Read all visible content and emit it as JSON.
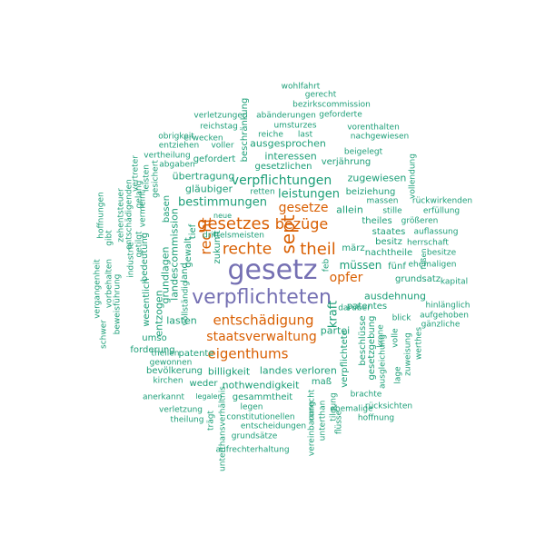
{
  "colors": {
    "purple": "#7570b3",
    "orange": "#d95f02",
    "green": "#1b9e77"
  },
  "words": [
    {
      "t": "gesetz",
      "c": "purple"
    },
    {
      "t": "verpflichteten",
      "c": "purple"
    },
    {
      "t": "sept",
      "c": "orange"
    },
    {
      "t": "theil",
      "c": "orange"
    },
    {
      "t": "rechte",
      "c": "orange"
    },
    {
      "t": "gesetzes",
      "c": "orange"
    },
    {
      "t": "bezüge",
      "c": "orange"
    },
    {
      "t": "gesetze",
      "c": "orange"
    },
    {
      "t": "recht",
      "c": "orange"
    },
    {
      "t": "entschädigung",
      "c": "orange"
    },
    {
      "t": "staatsverwaltung",
      "c": "orange"
    },
    {
      "t": "eigenthums",
      "c": "orange"
    },
    {
      "t": "opfer",
      "c": "orange"
    },
    {
      "t": "kraft",
      "c": "green"
    },
    {
      "t": "verpflichtungen",
      "c": "green"
    },
    {
      "t": "bestimmungen",
      "c": "green"
    },
    {
      "t": "leistungen",
      "c": "green"
    },
    {
      "t": "müssen",
      "c": "green"
    },
    {
      "t": "ausdehnung",
      "c": "green"
    },
    {
      "t": "lasten",
      "c": "green"
    },
    {
      "t": "partei",
      "c": "green"
    },
    {
      "t": "billigkeit",
      "c": "green"
    },
    {
      "t": "landes",
      "c": "green"
    },
    {
      "t": "verloren",
      "c": "green"
    },
    {
      "t": "nothwendigkeit",
      "c": "green"
    },
    {
      "t": "maß",
      "c": "green"
    },
    {
      "t": "verpflichtete",
      "c": "green"
    },
    {
      "t": "landescommission",
      "c": "green"
    },
    {
      "t": "grundlagen",
      "c": "green"
    },
    {
      "t": "entzogen",
      "c": "green"
    },
    {
      "t": "land",
      "c": "green"
    },
    {
      "t": "gewalt",
      "c": "green"
    },
    {
      "t": "tief",
      "c": "green"
    },
    {
      "t": "zukunft",
      "c": "green"
    },
    {
      "t": "basen",
      "c": "green"
    },
    {
      "t": "gläubiger",
      "c": "green"
    },
    {
      "t": "übertragung",
      "c": "green"
    },
    {
      "t": "gefordert",
      "c": "green"
    },
    {
      "t": "interessen",
      "c": "green"
    },
    {
      "t": "ausgesprochen",
      "c": "green"
    },
    {
      "t": "gesetzlichen",
      "c": "green"
    },
    {
      "t": "verjährung",
      "c": "green"
    },
    {
      "t": "zugewiesen",
      "c": "green"
    },
    {
      "t": "allein",
      "c": "green"
    },
    {
      "t": "theiles",
      "c": "green"
    },
    {
      "t": "staates",
      "c": "green"
    },
    {
      "t": "besitz",
      "c": "green"
    },
    {
      "t": "märz",
      "c": "green"
    },
    {
      "t": "fünf",
      "c": "green"
    },
    {
      "t": "grundsatz",
      "c": "green"
    },
    {
      "t": "beiziehung",
      "c": "green"
    },
    {
      "t": "nachtheile",
      "c": "green"
    },
    {
      "t": "patentes",
      "c": "green"
    },
    {
      "t": "beschlüsse",
      "c": "green"
    },
    {
      "t": "gesetzgebung",
      "c": "green"
    },
    {
      "t": "patente",
      "c": "green"
    },
    {
      "t": "gesammtheit",
      "c": "green"
    },
    {
      "t": "weder",
      "c": "green"
    },
    {
      "t": "umso",
      "c": "green"
    },
    {
      "t": "forderung",
      "c": "green"
    },
    {
      "t": "bevölkerung",
      "c": "green"
    },
    {
      "t": "wesentlich",
      "c": "green"
    },
    {
      "t": "bedeutung",
      "c": "green"
    },
    {
      "t": "beschränkung",
      "c": "green"
    },
    {
      "t": "umsturzes",
      "c": "green"
    },
    {
      "t": "reiche",
      "c": "green"
    },
    {
      "t": "last",
      "c": "green"
    },
    {
      "t": "voller",
      "c": "green"
    },
    {
      "t": "reichstag",
      "c": "green"
    },
    {
      "t": "verletzungen",
      "c": "green"
    },
    {
      "t": "abänderungen",
      "c": "green"
    },
    {
      "t": "geforderte",
      "c": "green"
    },
    {
      "t": "bezirkscommission",
      "c": "green"
    },
    {
      "t": "gerecht",
      "c": "green"
    },
    {
      "t": "wohlfahrt",
      "c": "green"
    },
    {
      "t": "vorenthalten",
      "c": "green"
    },
    {
      "t": "nachgewiesen",
      "c": "green"
    },
    {
      "t": "beigelegt",
      "c": "green"
    },
    {
      "t": "obrigkeit",
      "c": "green"
    },
    {
      "t": "erwecken",
      "c": "green"
    },
    {
      "t": "entziehen",
      "c": "green"
    },
    {
      "t": "vertheilung",
      "c": "green"
    },
    {
      "t": "abgaben",
      "c": "green"
    },
    {
      "t": "retten",
      "c": "green"
    },
    {
      "t": "neue",
      "c": "green"
    },
    {
      "t": "drittelsmeisten",
      "c": "green"
    },
    {
      "t": "massen",
      "c": "green"
    },
    {
      "t": "stille",
      "c": "green"
    },
    {
      "t": "größeren",
      "c": "green"
    },
    {
      "t": "rückwirkenden",
      "c": "green"
    },
    {
      "t": "erfüllung",
      "c": "green"
    },
    {
      "t": "vollendung",
      "c": "green"
    },
    {
      "t": "auflassung",
      "c": "green"
    },
    {
      "t": "herrschaft",
      "c": "green"
    },
    {
      "t": "besitze",
      "c": "green"
    },
    {
      "t": "ehemaligen",
      "c": "green"
    },
    {
      "t": "fußen",
      "c": "green"
    },
    {
      "t": "kapital",
      "c": "green"
    },
    {
      "t": "hinlänglich",
      "c": "green"
    },
    {
      "t": "aufgehoben",
      "c": "green"
    },
    {
      "t": "gänzliche",
      "c": "green"
    },
    {
      "t": "darüber",
      "c": "green"
    },
    {
      "t": "blick",
      "c": "green"
    },
    {
      "t": "krone",
      "c": "green"
    },
    {
      "t": "volle",
      "c": "green"
    },
    {
      "t": "werthes",
      "c": "green"
    },
    {
      "t": "zuweisung",
      "c": "green"
    },
    {
      "t": "ausgleichung",
      "c": "green"
    },
    {
      "t": "lage",
      "c": "green"
    },
    {
      "t": "brachte",
      "c": "green"
    },
    {
      "t": "rücksichten",
      "c": "green"
    },
    {
      "t": "hoffnung",
      "c": "green"
    },
    {
      "t": "ehemalige",
      "c": "green"
    },
    {
      "t": "flüsse",
      "c": "green"
    },
    {
      "t": "tilgung",
      "c": "green"
    },
    {
      "t": "unterthan",
      "c": "green"
    },
    {
      "t": "vereinbarung",
      "c": "green"
    },
    {
      "t": "unrecht",
      "c": "green"
    },
    {
      "t": "legen",
      "c": "green"
    },
    {
      "t": "constitutionellen",
      "c": "green"
    },
    {
      "t": "entscheidungen",
      "c": "green"
    },
    {
      "t": "grundsätze",
      "c": "green"
    },
    {
      "t": "aufrechterhaltung",
      "c": "green"
    },
    {
      "t": "unterthansverhältnis",
      "c": "green"
    },
    {
      "t": "trägt",
      "c": "green"
    },
    {
      "t": "verletzung",
      "c": "green"
    },
    {
      "t": "theilung",
      "c": "green"
    },
    {
      "t": "anerkannt",
      "c": "green"
    },
    {
      "t": "legalen",
      "c": "green"
    },
    {
      "t": "kirchen",
      "c": "green"
    },
    {
      "t": "gewonnen",
      "c": "green"
    },
    {
      "t": "theilen",
      "c": "green"
    },
    {
      "t": "schwer",
      "c": "green"
    },
    {
      "t": "beweisführung",
      "c": "green"
    },
    {
      "t": "vergangenheit",
      "c": "green"
    },
    {
      "t": "vorbehalten",
      "c": "green"
    },
    {
      "t": "gibt",
      "c": "green"
    },
    {
      "t": "hoffnungen",
      "c": "green"
    },
    {
      "t": "industrie",
      "c": "green"
    },
    {
      "t": "zehentsteuer",
      "c": "green"
    },
    {
      "t": "entschädigenden",
      "c": "green"
    },
    {
      "t": "vermeint",
      "c": "green"
    },
    {
      "t": "getilgt",
      "c": "green"
    },
    {
      "t": "gelang",
      "c": "green"
    },
    {
      "t": "leisten",
      "c": "green"
    },
    {
      "t": "vertreter",
      "c": "green"
    },
    {
      "t": "gesichert",
      "c": "green"
    },
    {
      "t": "vollständig",
      "c": "green"
    },
    {
      "t": "feb",
      "c": "green"
    },
    {
      "t": "gutes",
      "c": "green"
    }
  ]
}
